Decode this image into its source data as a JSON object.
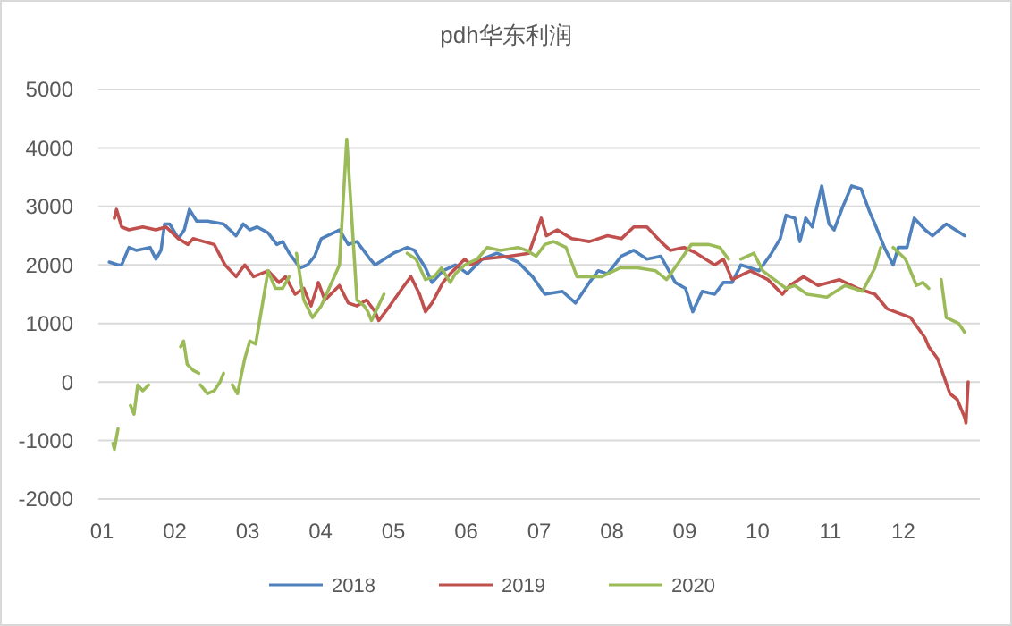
{
  "chart_data": {
    "type": "line",
    "title": "pdh华东利润",
    "xlim": [
      0.95,
      13.05
    ],
    "xticks": [
      {
        "value": 1,
        "label": "01"
      },
      {
        "value": 2,
        "label": "02"
      },
      {
        "value": 3,
        "label": "03"
      },
      {
        "value": 4,
        "label": "04"
      },
      {
        "value": 5,
        "label": "05"
      },
      {
        "value": 6,
        "label": "06"
      },
      {
        "value": 7,
        "label": "07"
      },
      {
        "value": 8,
        "label": "08"
      },
      {
        "value": 9,
        "label": "09"
      },
      {
        "value": 10,
        "label": "10"
      },
      {
        "value": 11,
        "label": "11"
      },
      {
        "value": 12,
        "label": "12"
      }
    ],
    "ylim": [
      -2000,
      5000
    ],
    "yticks": [
      -2000,
      -1000,
      0,
      1000,
      2000,
      3000,
      4000,
      5000
    ],
    "grid": "y",
    "legend": "bottom",
    "marker": "none",
    "line_style": "solid",
    "series": [
      {
        "name": "2018",
        "color": "#4f81bd",
        "x": [
          1.1,
          1.22,
          1.27,
          1.37,
          1.47,
          1.66,
          1.74,
          1.81,
          1.86,
          1.93,
          2.05,
          2.13,
          2.2,
          2.3,
          2.45,
          2.67,
          2.84,
          2.94,
          3.03,
          3.13,
          3.28,
          3.4,
          3.48,
          3.57,
          3.72,
          3.82,
          3.92,
          4.01,
          4.26,
          4.38,
          4.5,
          4.68,
          4.75,
          5.0,
          5.19,
          5.29,
          5.44,
          5.53,
          5.68,
          5.85,
          6.02,
          6.22,
          6.42,
          6.71,
          6.91,
          7.08,
          7.32,
          7.5,
          7.69,
          7.81,
          7.94,
          8.13,
          8.3,
          8.48,
          8.67,
          8.87,
          9.01,
          9.11,
          9.24,
          9.41,
          9.53,
          9.65,
          9.77,
          10.02,
          10.19,
          10.31,
          10.39,
          10.51,
          10.58,
          10.66,
          10.75,
          10.88,
          10.98,
          11.05,
          11.17,
          11.29,
          11.42,
          11.54,
          11.61,
          11.74,
          11.86,
          11.93,
          12.05,
          12.15,
          12.3,
          12.4,
          12.59,
          12.84
        ],
        "values": [
          2050,
          2000,
          2000,
          2300,
          2250,
          2300,
          2100,
          2250,
          2700,
          2700,
          2450,
          2600,
          2950,
          2750,
          2750,
          2700,
          2500,
          2700,
          2600,
          2650,
          2550,
          2350,
          2400,
          2200,
          1950,
          2000,
          2150,
          2450,
          2600,
          2350,
          2400,
          2100,
          2000,
          2200,
          2300,
          2250,
          1950,
          1700,
          1900,
          2000,
          1850,
          2100,
          2200,
          2050,
          1800,
          1500,
          1550,
          1350,
          1700,
          1900,
          1850,
          2150,
          2250,
          2100,
          2150,
          1700,
          1600,
          1200,
          1550,
          1500,
          1700,
          1700,
          2000,
          1900,
          2200,
          2450,
          2850,
          2800,
          2400,
          2800,
          2650,
          3350,
          2700,
          2600,
          3000,
          3350,
          3300,
          2900,
          2700,
          2300,
          2000,
          2300,
          2300,
          2800,
          2600,
          2500,
          2700,
          2500
        ]
      },
      {
        "name": "2019",
        "color": "#c0504d",
        "x": [
          1.17,
          1.2,
          1.27,
          1.37,
          1.56,
          1.74,
          1.88,
          2.05,
          2.18,
          2.25,
          2.54,
          2.69,
          2.84,
          2.96,
          3.08,
          3.28,
          3.43,
          3.52,
          3.65,
          3.77,
          3.87,
          3.97,
          4.06,
          4.26,
          4.38,
          4.5,
          4.63,
          4.75,
          4.8,
          4.95,
          5.12,
          5.24,
          5.36,
          5.44,
          5.53,
          5.68,
          5.78,
          5.98,
          6.07,
          6.22,
          6.59,
          6.86,
          7.03,
          7.1,
          7.25,
          7.45,
          7.69,
          7.94,
          8.13,
          8.3,
          8.48,
          8.67,
          8.8,
          8.99,
          9.16,
          9.41,
          9.53,
          9.65,
          9.9,
          10.14,
          10.34,
          10.44,
          10.63,
          10.83,
          11.12,
          11.37,
          11.61,
          11.78,
          12.1,
          12.3,
          12.35,
          12.47,
          12.64,
          12.74,
          12.84,
          12.86,
          12.89
        ],
        "values": [
          2800,
          2950,
          2650,
          2600,
          2650,
          2600,
          2650,
          2450,
          2350,
          2450,
          2350,
          2000,
          1800,
          2000,
          1800,
          1900,
          1700,
          1800,
          1500,
          1600,
          1300,
          1700,
          1400,
          1650,
          1350,
          1300,
          1400,
          1200,
          1050,
          1300,
          1600,
          1800,
          1500,
          1200,
          1350,
          1700,
          1850,
          2100,
          2000,
          2100,
          2150,
          2200,
          2800,
          2500,
          2600,
          2450,
          2400,
          2500,
          2450,
          2650,
          2650,
          2400,
          2250,
          2300,
          2200,
          2000,
          2100,
          1750,
          1900,
          1750,
          1500,
          1650,
          1800,
          1650,
          1750,
          1600,
          1500,
          1250,
          1100,
          750,
          600,
          400,
          -200,
          -300,
          -600,
          -700,
          0
        ]
      },
      {
        "name": "2020",
        "color": "#9bbb59",
        "x": [
          1.15,
          1.17,
          1.22,
          1.32,
          1.39,
          1.44,
          1.49,
          1.56,
          1.64,
          1.93,
          2.08,
          2.12,
          2.17,
          2.25,
          2.33,
          2.34,
          2.35,
          2.45,
          2.54,
          2.62,
          2.67,
          2.74,
          2.79,
          2.86,
          2.96,
          3.03,
          3.11,
          3.28,
          3.38,
          3.48,
          3.57,
          3.62,
          3.67,
          3.77,
          3.89,
          4.01,
          4.26,
          4.36,
          4.5,
          4.6,
          4.65,
          4.7,
          4.87,
          5.05,
          5.19,
          5.31,
          5.44,
          5.56,
          5.66,
          5.78,
          5.85,
          5.98,
          6.15,
          6.29,
          6.47,
          6.71,
          6.83,
          6.96,
          7.08,
          7.2,
          7.37,
          7.52,
          7.69,
          7.86,
          8.11,
          8.35,
          8.6,
          8.75,
          8.92,
          9.09,
          9.33,
          9.48,
          9.6,
          9.7,
          9.77,
          9.95,
          10.07,
          10.39,
          10.51,
          10.68,
          10.95,
          11.2,
          11.44,
          11.61,
          11.69,
          11.8,
          11.86,
          12.03,
          12.18,
          12.27,
          12.35,
          12.45,
          12.52,
          12.59,
          12.76,
          12.84
        ],
        "values": [
          -1050,
          -1150,
          -800,
          null,
          -400,
          -550,
          -50,
          -150,
          -50,
          null,
          600,
          700,
          300,
          200,
          150,
          null,
          -50,
          -200,
          -150,
          0,
          150,
          null,
          -50,
          -200,
          400,
          700,
          650,
          1900,
          1600,
          1600,
          1800,
          null,
          2200,
          1400,
          1100,
          1300,
          2000,
          4150,
          1400,
          1300,
          1200,
          1050,
          1500,
          null,
          2200,
          2100,
          1750,
          1800,
          1950,
          1700,
          1850,
          2000,
          2100,
          2300,
          2250,
          2300,
          2250,
          2150,
          2350,
          2400,
          2300,
          1800,
          1800,
          1800,
          1950,
          1950,
          1900,
          1750,
          2050,
          2350,
          2350,
          2300,
          2100,
          null,
          2100,
          2200,
          1900,
          1600,
          1650,
          1500,
          1450,
          1650,
          1550,
          1950,
          2300,
          null,
          2300,
          2100,
          1650,
          1700,
          1600,
          null,
          1750,
          1100,
          1000,
          850
        ]
      }
    ]
  }
}
